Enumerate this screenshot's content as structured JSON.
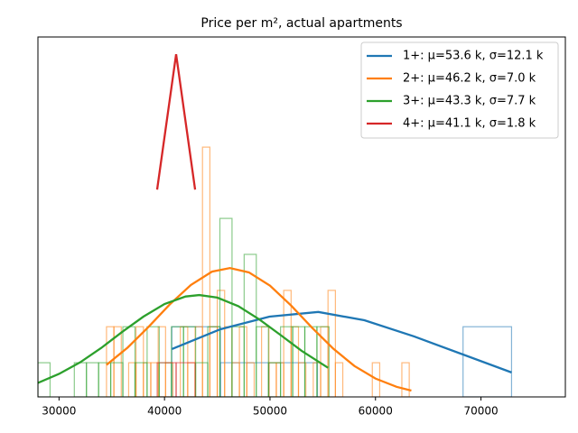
{
  "chart_data": {
    "type": "line",
    "title": "Price per m², actual apartments",
    "xlim": [
      28000,
      78000
    ],
    "ylim": [
      0,
      100
    ],
    "xticks": [
      30000,
      40000,
      50000,
      60000,
      70000
    ],
    "legend": "upper right",
    "series": [
      {
        "name": "1+: μ=53.6 k, σ=12.1 k",
        "color": "#1f77b4",
        "x": [
          40700,
          45300,
          49950,
          54580,
          58950,
          63660,
          72900
        ],
        "values": [
          13.3,
          18.8,
          22.3,
          23.6,
          21.3,
          16.8,
          6.8
        ]
      },
      {
        "name": "2+: μ=46.2 k, σ=7.0 k",
        "color": "#ff7f0e",
        "x": [
          34500,
          36500,
          38500,
          40500,
          42500,
          44500,
          46200,
          48000,
          50000,
          52000,
          54000,
          56000,
          58000,
          60000,
          62000,
          63400
        ],
        "values": [
          8.9,
          13.7,
          19.5,
          25.7,
          31.1,
          34.8,
          35.8,
          34.6,
          30.9,
          25.4,
          19.2,
          13.4,
          8.6,
          5.1,
          2.8,
          1.75
        ]
      },
      {
        "name": "3+: μ=43.3 k, σ=7.7 k",
        "color": "#2ca02c",
        "x": [
          28000,
          30000,
          32000,
          34000,
          36000,
          38000,
          40000,
          42000,
          43300,
          45000,
          47000,
          49000,
          51000,
          53000,
          55500
        ],
        "values": [
          3.9,
          6.4,
          9.6,
          13.6,
          18.1,
          22.3,
          25.8,
          27.9,
          28.3,
          27.6,
          25.2,
          21.5,
          17.2,
          12.8,
          8.1
        ]
      },
      {
        "name": "4+: μ=41.1 k, σ=1.8 k",
        "color": "#d62728",
        "x": [
          39300,
          41100,
          42900
        ],
        "values": [
          57.6,
          95.2,
          57.6
        ]
      }
    ],
    "histograms": [
      {
        "color": "#1f77b4",
        "bins": [
          40700,
          45300,
          49900,
          54500,
          59100,
          63700,
          68300,
          72900
        ],
        "values": [
          19.5,
          9.5,
          9.5,
          0,
          0,
          0,
          19.5
        ]
      },
      {
        "color": "#ff7f0e",
        "bins": [
          34500,
          35200,
          35900,
          36600,
          37300,
          38000,
          38700,
          39400,
          40100,
          40800,
          41500,
          42200,
          42900,
          43600,
          44300,
          45000,
          45700,
          46400,
          47100,
          47800,
          48500,
          49200,
          49900,
          50600,
          51300,
          52000,
          52700,
          53400,
          54100,
          54800,
          55500,
          56200,
          56900,
          57600,
          58300,
          59000,
          59700,
          60400,
          61100,
          61800,
          62500,
          63200
        ],
        "values": [
          19.5,
          19.5,
          0,
          9.5,
          19.5,
          9.5,
          9.5,
          19.5,
          9.5,
          0,
          19.5,
          9.5,
          19.5,
          69.4,
          19.5,
          29.6,
          19.5,
          9.5,
          19.5,
          9.5,
          0,
          19.5,
          9.5,
          9.5,
          29.6,
          19.5,
          9.5,
          0,
          9.5,
          19.5,
          29.6,
          9.5,
          0,
          0,
          0,
          0,
          9.5,
          0,
          0,
          0,
          9.5
        ]
      },
      {
        "color": "#2ca02c",
        "bins": [
          28000,
          29150,
          30300,
          31450,
          32600,
          33750,
          34900,
          36050,
          37200,
          38350,
          39500,
          40650,
          41800,
          42950,
          44100,
          45250,
          46400,
          47550,
          48700,
          49850,
          51000,
          52150,
          53300,
          54450,
          55600
        ],
        "values": [
          9.5,
          0,
          0,
          9.5,
          9.5,
          9.5,
          9.5,
          19.5,
          9.5,
          19.5,
          9.5,
          19.5,
          19.5,
          9.5,
          19.5,
          49.6,
          19.5,
          39.6,
          19.5,
          9.5,
          19.5,
          19.5,
          19.5,
          19.5
        ]
      },
      {
        "color": "#d62728",
        "bins": [
          39300,
          41100,
          42900
        ],
        "values": [
          9.5,
          9.5
        ]
      }
    ]
  }
}
